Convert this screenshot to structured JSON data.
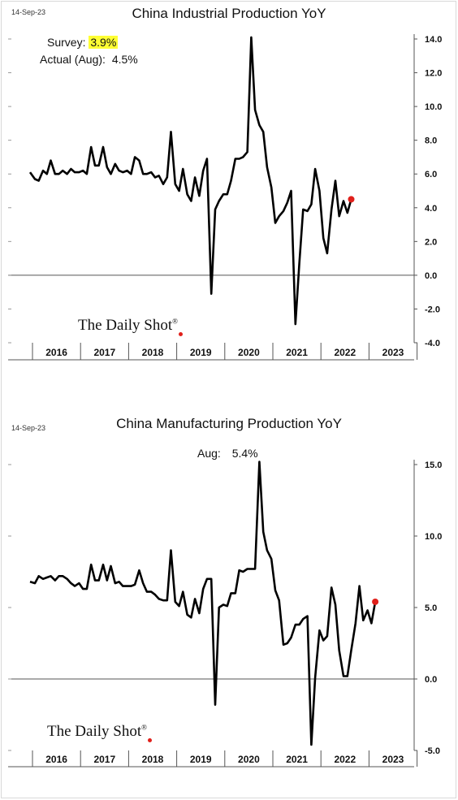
{
  "charts": [
    {
      "date": "14-Sep-23",
      "annotation": {
        "survey_label": "Survey:",
        "survey_value": "3.9%",
        "actual_label": "Actual (Aug):",
        "actual_value": "4.5%"
      },
      "logo": "The Daily Shot",
      "logo_mark": "®"
    },
    {
      "date": "14-Sep-23",
      "annotation": {
        "actual_label": "Aug:",
        "actual_value": "5.4%"
      },
      "logo": "The Daily Shot",
      "logo_mark": "®"
    }
  ],
  "chart_data": [
    {
      "type": "line",
      "title": "China Industrial Production YoY",
      "xlabel": "",
      "ylabel": "",
      "ylim": [
        -4.0,
        14.0
      ],
      "yticks": [
        "14.0",
        "12.0",
        "10.0",
        "8.0",
        "6.0",
        "4.0",
        "2.0",
        "0.0",
        "-2.0",
        "-4.0"
      ],
      "categories": [
        "2016",
        "2017",
        "2018",
        "2019",
        "2020",
        "2021",
        "2022",
        "2023"
      ],
      "x_start": 2016.0,
      "x_end": 2024.0,
      "grid": false,
      "zero_line": true,
      "series": [
        {
          "color": "#000000",
          "points": [
            [
              2015.95,
              6.1
            ],
            [
              2016.05,
              5.7
            ],
            [
              2016.13,
              5.6
            ],
            [
              2016.22,
              6.2
            ],
            [
              2016.3,
              6.0
            ],
            [
              2016.38,
              6.8
            ],
            [
              2016.47,
              6.0
            ],
            [
              2016.55,
              6.0
            ],
            [
              2016.63,
              6.2
            ],
            [
              2016.72,
              6.0
            ],
            [
              2016.8,
              6.3
            ],
            [
              2016.88,
              6.1
            ],
            [
              2016.97,
              6.1
            ],
            [
              2017.05,
              6.2
            ],
            [
              2017.13,
              6.0
            ],
            [
              2017.22,
              7.6
            ],
            [
              2017.3,
              6.5
            ],
            [
              2017.38,
              6.5
            ],
            [
              2017.47,
              7.6
            ],
            [
              2017.55,
              6.4
            ],
            [
              2017.63,
              6.0
            ],
            [
              2017.72,
              6.6
            ],
            [
              2017.8,
              6.2
            ],
            [
              2017.88,
              6.1
            ],
            [
              2017.97,
              6.2
            ],
            [
              2018.05,
              6.0
            ],
            [
              2018.13,
              7.0
            ],
            [
              2018.22,
              6.8
            ],
            [
              2018.3,
              6.0
            ],
            [
              2018.38,
              6.0
            ],
            [
              2018.47,
              6.1
            ],
            [
              2018.55,
              5.8
            ],
            [
              2018.63,
              5.9
            ],
            [
              2018.72,
              5.4
            ],
            [
              2018.8,
              5.8
            ],
            [
              2018.88,
              8.5
            ],
            [
              2018.97,
              5.4
            ],
            [
              2019.05,
              5.0
            ],
            [
              2019.13,
              6.3
            ],
            [
              2019.22,
              4.8
            ],
            [
              2019.3,
              4.4
            ],
            [
              2019.38,
              5.8
            ],
            [
              2019.47,
              4.7
            ],
            [
              2019.55,
              6.2
            ],
            [
              2019.63,
              6.9
            ],
            [
              2019.72,
              -1.1
            ],
            [
              2019.8,
              3.9
            ],
            [
              2019.88,
              4.4
            ],
            [
              2019.97,
              4.8
            ],
            [
              2020.05,
              4.8
            ],
            [
              2020.13,
              5.6
            ],
            [
              2020.22,
              6.9
            ],
            [
              2020.3,
              6.9
            ],
            [
              2020.38,
              7.0
            ],
            [
              2020.47,
              7.3
            ],
            [
              2020.55,
              14.1
            ],
            [
              2020.63,
              9.8
            ],
            [
              2020.72,
              8.9
            ],
            [
              2020.8,
              8.5
            ],
            [
              2020.88,
              6.4
            ],
            [
              2020.97,
              5.2
            ],
            [
              2021.05,
              3.1
            ],
            [
              2021.13,
              3.5
            ],
            [
              2021.22,
              3.8
            ],
            [
              2021.3,
              4.3
            ],
            [
              2021.38,
              5.0
            ],
            [
              2021.47,
              -2.9
            ],
            [
              2021.55,
              0.7
            ],
            [
              2021.63,
              3.9
            ],
            [
              2021.72,
              3.8
            ],
            [
              2021.8,
              4.2
            ],
            [
              2021.88,
              6.3
            ],
            [
              2021.97,
              5.0
            ],
            [
              2022.05,
              2.2
            ],
            [
              2022.13,
              1.3
            ],
            [
              2022.22,
              3.9
            ],
            [
              2022.3,
              5.6
            ],
            [
              2022.38,
              3.5
            ],
            [
              2022.47,
              4.4
            ],
            [
              2022.55,
              3.7
            ],
            [
              2022.63,
              4.5
            ]
          ]
        }
      ],
      "marker": {
        "x": 2022.63,
        "y": 4.5,
        "color": "#e0201b"
      }
    },
    {
      "type": "line",
      "title": "China Manufacturing Production YoY",
      "xlabel": "",
      "ylabel": "",
      "ylim": [
        -5.0,
        15.0
      ],
      "yticks": [
        "15.0",
        "10.0",
        "5.0",
        "0.0",
        "-5.0"
      ],
      "categories": [
        "2016",
        "2017",
        "2018",
        "2019",
        "2020",
        "2021",
        "2022",
        "2023"
      ],
      "x_start": 2016.0,
      "x_end": 2024.0,
      "grid": false,
      "zero_line": true,
      "series": [
        {
          "color": "#000000",
          "points": [
            [
              2015.95,
              6.8
            ],
            [
              2016.05,
              6.7
            ],
            [
              2016.13,
              7.2
            ],
            [
              2016.22,
              7.0
            ],
            [
              2016.3,
              7.1
            ],
            [
              2016.38,
              7.2
            ],
            [
              2016.47,
              6.9
            ],
            [
              2016.55,
              7.2
            ],
            [
              2016.63,
              7.2
            ],
            [
              2016.72,
              7.0
            ],
            [
              2016.8,
              6.7
            ],
            [
              2016.88,
              6.5
            ],
            [
              2016.97,
              6.7
            ],
            [
              2017.05,
              6.3
            ],
            [
              2017.13,
              6.3
            ],
            [
              2017.22,
              8.0
            ],
            [
              2017.3,
              6.9
            ],
            [
              2017.38,
              6.9
            ],
            [
              2017.47,
              8.0
            ],
            [
              2017.55,
              6.9
            ],
            [
              2017.63,
              7.9
            ],
            [
              2017.72,
              6.7
            ],
            [
              2017.8,
              6.8
            ],
            [
              2017.88,
              6.5
            ],
            [
              2017.97,
              6.5
            ],
            [
              2018.05,
              6.5
            ],
            [
              2018.13,
              6.6
            ],
            [
              2018.22,
              7.6
            ],
            [
              2018.3,
              6.7
            ],
            [
              2018.38,
              6.1
            ],
            [
              2018.47,
              6.1
            ],
            [
              2018.55,
              5.9
            ],
            [
              2018.63,
              5.6
            ],
            [
              2018.72,
              5.5
            ],
            [
              2018.8,
              5.5
            ],
            [
              2018.88,
              9.0
            ],
            [
              2018.97,
              5.4
            ],
            [
              2019.05,
              5.1
            ],
            [
              2019.13,
              6.1
            ],
            [
              2019.22,
              4.5
            ],
            [
              2019.3,
              4.3
            ],
            [
              2019.38,
              5.6
            ],
            [
              2019.47,
              4.6
            ],
            [
              2019.55,
              6.3
            ],
            [
              2019.63,
              7.0
            ],
            [
              2019.72,
              7.0
            ],
            [
              2019.8,
              -1.8
            ],
            [
              2019.88,
              5.0
            ],
            [
              2019.97,
              5.2
            ],
            [
              2020.05,
              5.1
            ],
            [
              2020.13,
              6.0
            ],
            [
              2020.22,
              6.0
            ],
            [
              2020.3,
              7.6
            ],
            [
              2020.38,
              7.5
            ],
            [
              2020.47,
              7.7
            ],
            [
              2020.55,
              7.7
            ],
            [
              2020.63,
              7.7
            ],
            [
              2020.72,
              15.2
            ],
            [
              2020.8,
              10.3
            ],
            [
              2020.88,
              9.0
            ],
            [
              2020.97,
              8.4
            ],
            [
              2021.05,
              6.2
            ],
            [
              2021.13,
              5.5
            ],
            [
              2021.22,
              2.4
            ],
            [
              2021.3,
              2.5
            ],
            [
              2021.38,
              2.9
            ],
            [
              2021.47,
              3.8
            ],
            [
              2021.55,
              3.8
            ],
            [
              2021.63,
              4.2
            ],
            [
              2021.72,
              4.4
            ],
            [
              2021.8,
              -4.6
            ],
            [
              2021.88,
              0.1
            ],
            [
              2021.97,
              3.4
            ],
            [
              2022.05,
              2.7
            ],
            [
              2022.13,
              3.0
            ],
            [
              2022.22,
              6.4
            ],
            [
              2022.3,
              5.2
            ],
            [
              2022.38,
              2.0
            ],
            [
              2022.47,
              0.2
            ],
            [
              2022.55,
              0.2
            ],
            [
              2022.63,
              2.0
            ],
            [
              2022.72,
              3.9
            ],
            [
              2022.8,
              6.5
            ],
            [
              2022.88,
              4.1
            ],
            [
              2022.97,
              4.8
            ],
            [
              2023.05,
              3.9
            ],
            [
              2023.13,
              5.4
            ]
          ]
        }
      ],
      "marker": {
        "x": 2023.13,
        "y": 5.4,
        "color": "#e0201b"
      }
    }
  ]
}
